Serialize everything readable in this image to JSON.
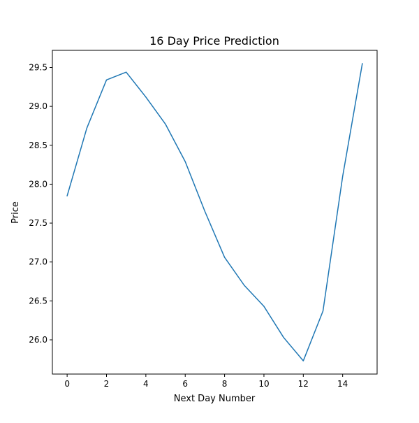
{
  "chart_data": {
    "type": "line",
    "title": "16 Day Price Prediction",
    "xlabel": "Next Day Number",
    "ylabel": "Price",
    "x": [
      0,
      1,
      2,
      3,
      4,
      5,
      6,
      7,
      8,
      9,
      10,
      11,
      12,
      13,
      14,
      15
    ],
    "series": [
      {
        "values": [
          27.85,
          28.72,
          29.34,
          29.44,
          29.12,
          28.77,
          28.29,
          27.65,
          27.06,
          26.7,
          26.43,
          26.03,
          25.73,
          26.37,
          28.1,
          29.55
        ],
        "color": "#1f77b4"
      }
    ],
    "xlim": [
      -0.75,
      15.75
    ],
    "ylim": [
      25.56,
      29.72
    ],
    "xticks": [
      0,
      2,
      4,
      6,
      8,
      10,
      12,
      14
    ],
    "xtick_labels": [
      "0",
      "2",
      "4",
      "6",
      "8",
      "10",
      "12",
      "14"
    ],
    "yticks": [
      26.0,
      26.5,
      27.0,
      27.5,
      28.0,
      28.5,
      29.0,
      29.5
    ],
    "ytick_labels": [
      "26.0",
      "26.5",
      "27.0",
      "27.5",
      "28.0",
      "28.5",
      "29.0",
      "29.5"
    ],
    "grid": false,
    "legend": "none"
  }
}
